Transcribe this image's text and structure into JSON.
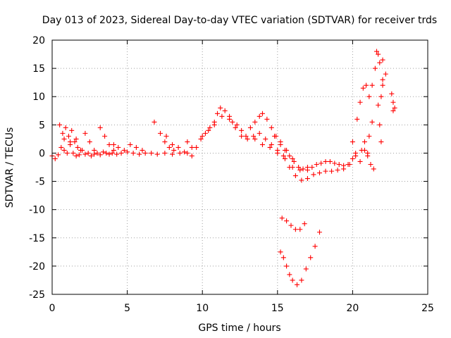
{
  "chart_data": {
    "type": "scatter",
    "title": "Day 013 of 2023, Sidereal Day-to-day VTEC variation (SDTVAR) for receiver trds",
    "xlabel": "GPS time / hours",
    "ylabel": "SDTVAR / TECUs",
    "xlim": [
      0,
      25
    ],
    "ylim": [
      -25,
      20
    ],
    "xticks": [
      "0",
      "5",
      "10",
      "15",
      "20",
      "25"
    ],
    "yticks": [
      "20",
      "15",
      "10",
      "5",
      "0",
      "-5",
      "-10",
      "-15",
      "-20",
      "-25"
    ],
    "grid": true,
    "marker": "plus",
    "series": [
      {
        "name": "SDTVAR",
        "color": "#ff0000",
        "points": [
          [
            0.0,
            -0.5
          ],
          [
            0.2,
            -1.0
          ],
          [
            0.4,
            -0.3
          ],
          [
            0.6,
            1.0
          ],
          [
            0.8,
            0.5
          ],
          [
            1.0,
            0.0
          ],
          [
            1.2,
            1.5
          ],
          [
            1.4,
            0.0
          ],
          [
            1.6,
            -0.5
          ],
          [
            1.8,
            -0.3
          ],
          [
            2.0,
            0.5
          ],
          [
            2.2,
            -0.2
          ],
          [
            2.4,
            0.0
          ],
          [
            2.6,
            -0.5
          ],
          [
            2.8,
            -0.2
          ],
          [
            3.0,
            0.0
          ],
          [
            3.2,
            -0.3
          ],
          [
            3.4,
            0.2
          ],
          [
            3.6,
            0.0
          ],
          [
            3.8,
            -0.2
          ],
          [
            4.0,
            0.0
          ],
          [
            4.3,
            -0.2
          ],
          [
            4.6,
            0.0
          ],
          [
            5.0,
            0.2
          ],
          [
            5.4,
            0.0
          ],
          [
            5.8,
            -0.2
          ],
          [
            6.2,
            0.0
          ],
          [
            6.6,
            0.0
          ],
          [
            7.0,
            -0.2
          ],
          [
            7.5,
            0.0
          ],
          [
            8.0,
            -0.2
          ],
          [
            8.5,
            0.0
          ],
          [
            9.0,
            0.0
          ],
          [
            9.3,
            -0.5
          ],
          [
            0.5,
            5.0
          ],
          [
            0.7,
            3.5
          ],
          [
            0.9,
            4.5
          ],
          [
            1.1,
            3.0
          ],
          [
            1.3,
            4.0
          ],
          [
            1.5,
            2.0
          ],
          [
            1.7,
            1.0
          ],
          [
            1.9,
            0.5
          ],
          [
            0.8,
            2.5
          ],
          [
            1.2,
            2.0
          ],
          [
            1.6,
            2.5
          ],
          [
            2.2,
            3.5
          ],
          [
            2.5,
            2.0
          ],
          [
            2.8,
            0.5
          ],
          [
            3.2,
            4.5
          ],
          [
            3.5,
            3.0
          ],
          [
            3.8,
            1.5
          ],
          [
            4.1,
            0.5
          ],
          [
            4.1,
            1.5
          ],
          [
            4.4,
            1.0
          ],
          [
            4.8,
            0.5
          ],
          [
            5.2,
            1.5
          ],
          [
            5.6,
            1.0
          ],
          [
            6.0,
            0.5
          ],
          [
            6.8,
            5.5
          ],
          [
            7.2,
            3.5
          ],
          [
            7.5,
            2.0
          ],
          [
            7.8,
            1.0
          ],
          [
            8.1,
            0.5
          ],
          [
            7.6,
            3.0
          ],
          [
            8.0,
            1.5
          ],
          [
            8.4,
            1.0
          ],
          [
            8.8,
            0.2
          ],
          [
            9.0,
            2.0
          ],
          [
            9.3,
            1.0
          ],
          [
            9.6,
            1.0
          ],
          [
            9.9,
            2.5
          ],
          [
            10.2,
            3.5
          ],
          [
            10.5,
            4.5
          ],
          [
            10.8,
            5.5
          ],
          [
            11.0,
            7.0
          ],
          [
            11.2,
            8.0
          ],
          [
            11.5,
            7.5
          ],
          [
            11.8,
            6.5
          ],
          [
            12.0,
            5.5
          ],
          [
            12.3,
            5.0
          ],
          [
            12.6,
            4.0
          ],
          [
            12.9,
            3.0
          ],
          [
            13.2,
            4.5
          ],
          [
            13.5,
            5.5
          ],
          [
            13.8,
            6.5
          ],
          [
            14.0,
            7.0
          ],
          [
            14.3,
            6.0
          ],
          [
            14.6,
            4.5
          ],
          [
            14.9,
            3.0
          ],
          [
            15.2,
            1.5
          ],
          [
            15.5,
            0.5
          ],
          [
            15.8,
            -0.5
          ],
          [
            16.1,
            -1.5
          ],
          [
            16.4,
            -2.5
          ],
          [
            16.7,
            -2.8
          ],
          [
            17.0,
            -3.0
          ],
          [
            17.3,
            -2.5
          ],
          [
            17.6,
            -2.0
          ],
          [
            17.9,
            -1.8
          ],
          [
            18.2,
            -1.5
          ],
          [
            18.5,
            -1.5
          ],
          [
            18.8,
            -1.8
          ],
          [
            19.1,
            -2.0
          ],
          [
            19.4,
            -2.2
          ],
          [
            19.7,
            -2.0
          ],
          [
            20.0,
            -1.0
          ],
          [
            10.0,
            3.0
          ],
          [
            10.4,
            4.0
          ],
          [
            10.8,
            5.0
          ],
          [
            11.3,
            6.5
          ],
          [
            11.8,
            6.0
          ],
          [
            12.2,
            4.5
          ],
          [
            12.6,
            3.0
          ],
          [
            13.0,
            2.5
          ],
          [
            13.4,
            3.0
          ],
          [
            13.8,
            3.5
          ],
          [
            14.2,
            2.5
          ],
          [
            14.6,
            1.5
          ],
          [
            15.0,
            0.5
          ],
          [
            15.4,
            -0.5
          ],
          [
            15.8,
            -2.5
          ],
          [
            16.2,
            -4.0
          ],
          [
            16.6,
            -4.8
          ],
          [
            17.0,
            -4.5
          ],
          [
            17.4,
            -3.8
          ],
          [
            17.8,
            -3.5
          ],
          [
            18.2,
            -3.2
          ],
          [
            18.6,
            -3.2
          ],
          [
            19.0,
            -3.0
          ],
          [
            19.4,
            -2.8
          ],
          [
            19.8,
            -2.0
          ],
          [
            20.2,
            -0.5
          ],
          [
            13.5,
            2.5
          ],
          [
            14.0,
            1.5
          ],
          [
            14.5,
            1.0
          ],
          [
            15.0,
            0.0
          ],
          [
            15.5,
            -1.0
          ],
          [
            16.0,
            -2.5
          ],
          [
            16.5,
            -3.0
          ],
          [
            17.0,
            -2.5
          ],
          [
            14.8,
            3.0
          ],
          [
            15.2,
            2.0
          ],
          [
            15.6,
            0.5
          ],
          [
            16.0,
            -1.0
          ],
          [
            15.3,
            -11.5
          ],
          [
            15.6,
            -12.0
          ],
          [
            15.9,
            -12.8
          ],
          [
            16.2,
            -13.5
          ],
          [
            16.5,
            -13.5
          ],
          [
            16.8,
            -12.5
          ],
          [
            15.2,
            -17.5
          ],
          [
            15.4,
            -18.5
          ],
          [
            15.6,
            -20.0
          ],
          [
            15.8,
            -21.5
          ],
          [
            16.0,
            -22.5
          ],
          [
            16.3,
            -23.3
          ],
          [
            16.6,
            -22.5
          ],
          [
            16.9,
            -20.5
          ],
          [
            17.2,
            -18.5
          ],
          [
            17.5,
            -16.5
          ],
          [
            17.8,
            -14.0
          ],
          [
            20.0,
            2.0
          ],
          [
            20.3,
            6.0
          ],
          [
            20.5,
            9.0
          ],
          [
            20.7,
            11.5
          ],
          [
            20.9,
            12.0
          ],
          [
            21.1,
            10.0
          ],
          [
            21.3,
            12.0
          ],
          [
            21.5,
            15.0
          ],
          [
            21.7,
            17.5
          ],
          [
            21.8,
            16.0
          ],
          [
            22.0,
            13.0
          ],
          [
            21.9,
            10.0
          ],
          [
            21.7,
            8.5
          ],
          [
            21.8,
            5.0
          ],
          [
            21.9,
            2.0
          ],
          [
            20.2,
            0.0
          ],
          [
            20.5,
            -1.5
          ],
          [
            20.8,
            0.5
          ],
          [
            21.1,
            3.0
          ],
          [
            21.3,
            5.5
          ],
          [
            21.0,
            -0.5
          ],
          [
            21.2,
            -2.0
          ],
          [
            21.4,
            -2.8
          ],
          [
            22.0,
            12.0
          ],
          [
            22.2,
            14.0
          ],
          [
            22.0,
            16.5
          ],
          [
            21.6,
            18.0
          ],
          [
            22.6,
            10.5
          ],
          [
            22.7,
            9.0
          ],
          [
            22.8,
            8.0
          ],
          [
            22.7,
            7.5
          ],
          [
            21.0,
            0.0
          ],
          [
            20.8,
            2.0
          ],
          [
            20.6,
            0.5
          ]
        ]
      }
    ]
  }
}
